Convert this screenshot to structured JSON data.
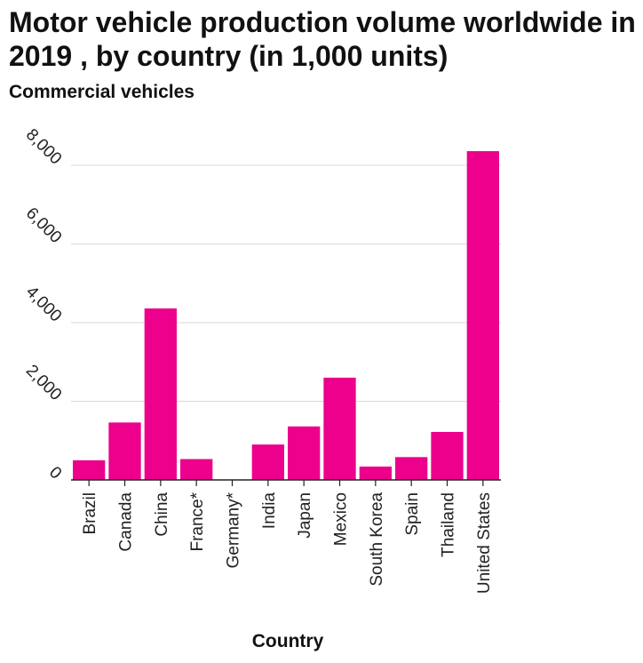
{
  "chart_data": {
    "type": "bar",
    "title": "Motor vehicle production volume worldwide in 2019 , by country (in 1,000 units)",
    "ylabel": "Commercial vehicles",
    "xlabel": "Country",
    "categories": [
      "Brazil",
      "Canada",
      "China",
      "France*",
      "Germany*",
      "India",
      "Japan",
      "Mexico",
      "South Korea",
      "Spain",
      "Thailand",
      "United States"
    ],
    "values": [
      500,
      1460,
      4360,
      530,
      0,
      900,
      1360,
      2600,
      340,
      580,
      1220,
      8360
    ],
    "yticks": [
      "0",
      "2,000",
      "4,000",
      "6,000",
      "8,000"
    ],
    "ylim": [
      0,
      8000
    ],
    "grid": true,
    "bar_color": "#ec008c"
  }
}
